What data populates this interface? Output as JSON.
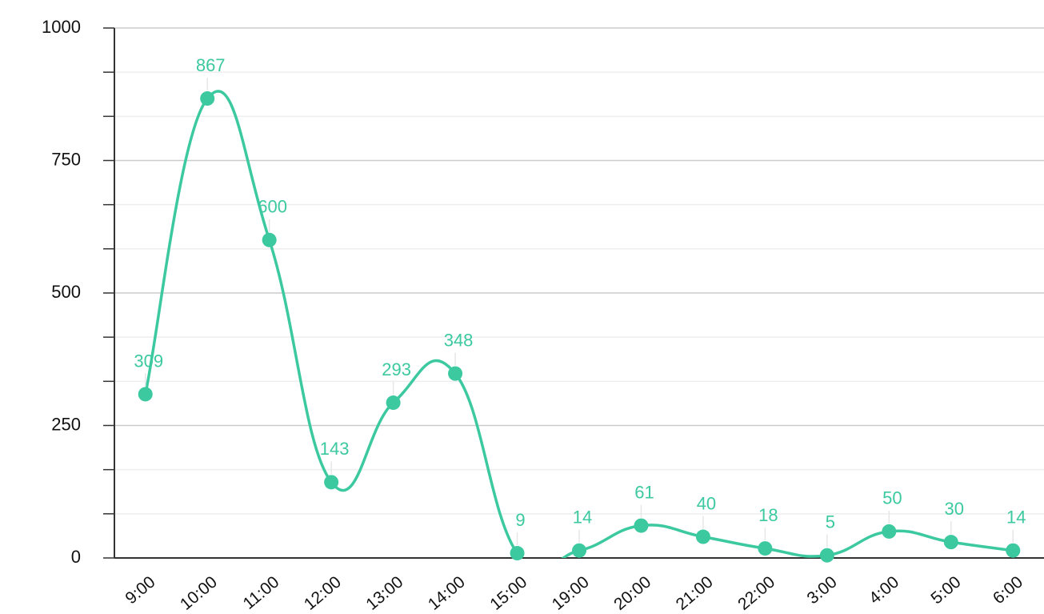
{
  "chart_data": {
    "type": "line",
    "categories": [
      "9:00",
      "10:00",
      "11:00",
      "12:00",
      "13:00",
      "14:00",
      "15:00",
      "19:00",
      "20:00",
      "21:00",
      "22:00",
      "3:00",
      "4:00",
      "5:00",
      "6:00"
    ],
    "values": [
      309,
      867,
      600,
      143,
      293,
      348,
      9,
      14,
      61,
      40,
      18,
      5,
      50,
      30,
      14
    ],
    "color": "#3cc9a0",
    "ylim": [
      0,
      1000
    ],
    "yticks": [
      0,
      250,
      500,
      750,
      1000
    ],
    "grid": true
  }
}
